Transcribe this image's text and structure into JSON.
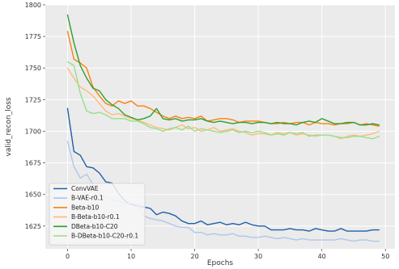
{
  "chart_data": {
    "type": "line",
    "xlabel": "Epochs",
    "ylabel": "valid_recon_loss",
    "xlim": [
      -3.5,
      51.5
    ],
    "ylim": [
      1607,
      1800
    ],
    "xticks": [
      0,
      10,
      20,
      30,
      40,
      50
    ],
    "yticks": [
      1625,
      1650,
      1675,
      1700,
      1725,
      1750,
      1775,
      1800
    ],
    "grid": true,
    "legend_position": "bottom-left",
    "x": [
      0,
      1,
      2,
      3,
      4,
      5,
      6,
      7,
      8,
      9,
      10,
      11,
      12,
      13,
      14,
      15,
      16,
      17,
      18,
      19,
      20,
      21,
      22,
      23,
      24,
      25,
      26,
      27,
      28,
      29,
      30,
      31,
      32,
      33,
      34,
      35,
      36,
      37,
      38,
      39,
      40,
      41,
      42,
      43,
      44,
      45,
      46,
      47,
      48,
      49
    ],
    "series": [
      {
        "name": "ConvVAE",
        "color": "#1f5fa8",
        "values": [
          1718,
          1684,
          1681,
          1672,
          1671,
          1667,
          1660,
          1659,
          1651,
          1645,
          1642,
          1641,
          1640,
          1639,
          1634,
          1636,
          1635,
          1633,
          1629,
          1627,
          1627,
          1629,
          1626,
          1627,
          1628,
          1626,
          1627,
          1626,
          1628,
          1626,
          1625,
          1625,
          1622,
          1622,
          1622,
          1623,
          1622,
          1622,
          1621,
          1623,
          1622,
          1621,
          1621,
          1623,
          1621,
          1621,
          1621,
          1621,
          1622,
          1622
        ]
      },
      {
        "name": "B-VAE-r0.1",
        "color": "#aec7e8",
        "values": [
          1692,
          1672,
          1663,
          1666,
          1658,
          1650,
          1648,
          1646,
          1645,
          1643,
          1643,
          1642,
          1633,
          1631,
          1630,
          1629,
          1627,
          1625,
          1624,
          1624,
          1620,
          1620,
          1618,
          1619,
          1618,
          1618,
          1619,
          1617,
          1617,
          1616,
          1616,
          1617,
          1616,
          1615,
          1616,
          1615,
          1614,
          1615,
          1614,
          1614,
          1614,
          1614,
          1614,
          1615,
          1614,
          1613,
          1614,
          1614,
          1613,
          1613
        ]
      },
      {
        "name": "Beta-b10",
        "color": "#ff7f0e",
        "values": [
          1779,
          1757,
          1754,
          1750,
          1735,
          1728,
          1722,
          1720,
          1724,
          1722,
          1724,
          1720,
          1720,
          1718,
          1715,
          1712,
          1710,
          1712,
          1710,
          1711,
          1710,
          1712,
          1708,
          1709,
          1710,
          1710,
          1709,
          1707,
          1708,
          1708,
          1708,
          1707,
          1706,
          1706,
          1707,
          1706,
          1707,
          1707,
          1705,
          1707,
          1706,
          1706,
          1705,
          1706,
          1706,
          1707,
          1705,
          1706,
          1705,
          1704
        ]
      },
      {
        "name": "B-Beta-b10-r0.1",
        "color": "#ffbb78",
        "values": [
          1750,
          1742,
          1735,
          1732,
          1728,
          1722,
          1716,
          1713,
          1714,
          1712,
          1710,
          1709,
          1707,
          1705,
          1703,
          1702,
          1701,
          1703,
          1705,
          1702,
          1703,
          1700,
          1701,
          1703,
          1700,
          1701,
          1702,
          1700,
          1699,
          1697,
          1698,
          1698,
          1697,
          1699,
          1698,
          1699,
          1697,
          1698,
          1697,
          1696,
          1697,
          1697,
          1696,
          1694,
          1696,
          1697,
          1696,
          1697,
          1698,
          1700
        ]
      },
      {
        "name": "DBeta-b10-C20",
        "color": "#2ca02c",
        "values": [
          1792,
          1770,
          1752,
          1742,
          1734,
          1732,
          1725,
          1721,
          1718,
          1713,
          1711,
          1709,
          1710,
          1712,
          1718,
          1710,
          1709,
          1710,
          1708,
          1709,
          1709,
          1710,
          1708,
          1707,
          1708,
          1707,
          1706,
          1707,
          1707,
          1706,
          1707,
          1707,
          1706,
          1707,
          1706,
          1706,
          1705,
          1707,
          1708,
          1707,
          1710,
          1708,
          1706,
          1706,
          1707,
          1707,
          1705,
          1705,
          1706,
          1705
        ]
      },
      {
        "name": "B-DBeta-b10-C20-r0.1",
        "color": "#98df8a",
        "values": [
          1755,
          1752,
          1730,
          1716,
          1714,
          1715,
          1713,
          1710,
          1710,
          1710,
          1708,
          1708,
          1706,
          1703,
          1702,
          1700,
          1702,
          1703,
          1701,
          1704,
          1700,
          1702,
          1701,
          1700,
          1699,
          1700,
          1701,
          1699,
          1700,
          1699,
          1700,
          1699,
          1697,
          1698,
          1697,
          1699,
          1698,
          1699,
          1696,
          1697,
          1697,
          1697,
          1696,
          1695,
          1695,
          1696,
          1696,
          1695,
          1694,
          1696
        ]
      }
    ]
  }
}
